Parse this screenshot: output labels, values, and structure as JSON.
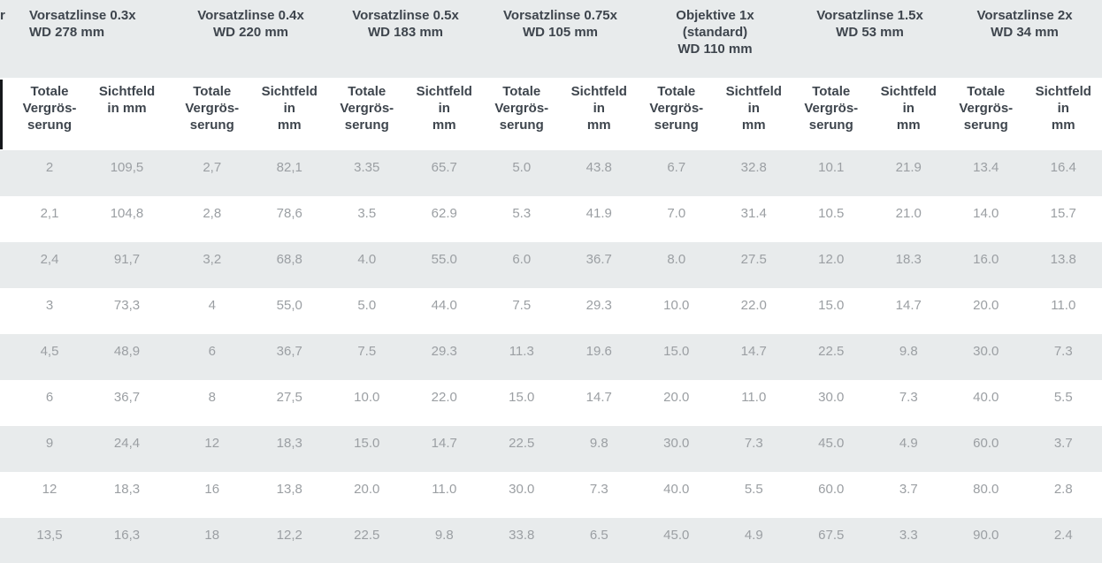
{
  "colors": {
    "row_stripe": "#e8ebec",
    "header_text": "#3e454d",
    "value_text": "#9b9fa3",
    "page_background": "#ffffff"
  },
  "table": {
    "corner_label": "r",
    "groups": [
      "Vorsatzlinse 0.3x\nWD 278 mm",
      "Vorsatzlinse 0.4x\nWD 220 mm",
      "Vorsatzlinse 0.5x\nWD 183 mm",
      "Vorsatzlinse 0.75x\nWD 105 mm",
      "Objektive 1x\n(standard)\nWD 110 mm",
      "Vorsatzlinse 1.5x\nWD 53 mm",
      "Vorsatzlinse 2x\nWD 34 mm"
    ],
    "subheaders": [
      "Totale\nVergrös-\nserung",
      "Sichtfeld\nin mm",
      "Totale\nVergrös-\nserung",
      "Sichtfeld in\nmm",
      "Totale\nVergrös-\nserung",
      "Sichtfeld in\nmm",
      "Totale\nVergrös-\nserung",
      "Sichtfeld in\nmm",
      "Totale\nVergrös-\nserung",
      "Sichtfeld  in\nmm",
      "Totale\nVergrös-\nserung",
      "Sichtfeld in\nmm",
      "Totale\nVergrös-\nserung",
      "Sichtfeld in\nmm"
    ],
    "rows": [
      [
        "2",
        "109,5",
        "2,7",
        "82,1",
        "3.35",
        "65.7",
        "5.0",
        "43.8",
        "6.7",
        "32.8",
        "10.1",
        "21.9",
        "13.4",
        "16.4"
      ],
      [
        "2,1",
        "104,8",
        "2,8",
        "78,6",
        "3.5",
        "62.9",
        "5.3",
        "41.9",
        "7.0",
        "31.4",
        "10.5",
        "21.0",
        "14.0",
        "15.7"
      ],
      [
        "2,4",
        "91,7",
        "3,2",
        "68,8",
        "4.0",
        "55.0",
        "6.0",
        "36.7",
        "8.0",
        "27.5",
        "12.0",
        "18.3",
        "16.0",
        "13.8"
      ],
      [
        "3",
        "73,3",
        "4",
        "55,0",
        "5.0",
        "44.0",
        "7.5",
        "29.3",
        "10.0",
        "22.0",
        "15.0",
        "14.7",
        "20.0",
        "11.0"
      ],
      [
        "4,5",
        "48,9",
        "6",
        "36,7",
        "7.5",
        "29.3",
        "11.3",
        "19.6",
        "15.0",
        "14.7",
        "22.5",
        "9.8",
        "30.0",
        "7.3"
      ],
      [
        "6",
        "36,7",
        "8",
        "27,5",
        "10.0",
        "22.0",
        "15.0",
        "14.7",
        "20.0",
        "11.0",
        "30.0",
        "7.3",
        "40.0",
        "5.5"
      ],
      [
        "9",
        "24,4",
        "12",
        "18,3",
        "15.0",
        "14.7",
        "22.5",
        "9.8",
        "30.0",
        "7.3",
        "45.0",
        "4.9",
        "60.0",
        "3.7"
      ],
      [
        "12",
        "18,3",
        "16",
        "13,8",
        "20.0",
        "11.0",
        "30.0",
        "7.3",
        "40.0",
        "5.5",
        "60.0",
        "3.7",
        "80.0",
        "2.8"
      ],
      [
        "13,5",
        "16,3",
        "18",
        "12,2",
        "22.5",
        "9.8",
        "33.8",
        "6.5",
        "45.0",
        "4.9",
        "67.5",
        "3.3",
        "90.0",
        "2.4"
      ]
    ]
  }
}
